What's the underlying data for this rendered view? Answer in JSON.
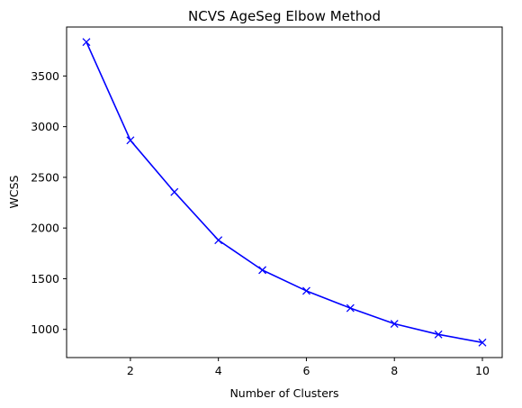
{
  "chart_data": {
    "type": "line",
    "title": "NCVS AgeSeg Elbow Method",
    "xlabel": "Number of Clusters",
    "ylabel": "WCSS",
    "x": [
      1,
      2,
      3,
      4,
      5,
      6,
      7,
      8,
      9,
      10
    ],
    "series": [
      {
        "values": [
          3835,
          2865,
          2355,
          1880,
          1585,
          1380,
          1210,
          1055,
          950,
          870
        ],
        "color": "#0000ff",
        "marker": "x"
      }
    ],
    "xlim": [
      0.55,
      10.45
    ],
    "ylim": [
      722,
      3983
    ],
    "xticks": [
      2,
      4,
      6,
      8,
      10
    ],
    "yticks": [
      1000,
      1500,
      2000,
      2500,
      3000,
      3500
    ],
    "grid": false,
    "legend": "none"
  }
}
